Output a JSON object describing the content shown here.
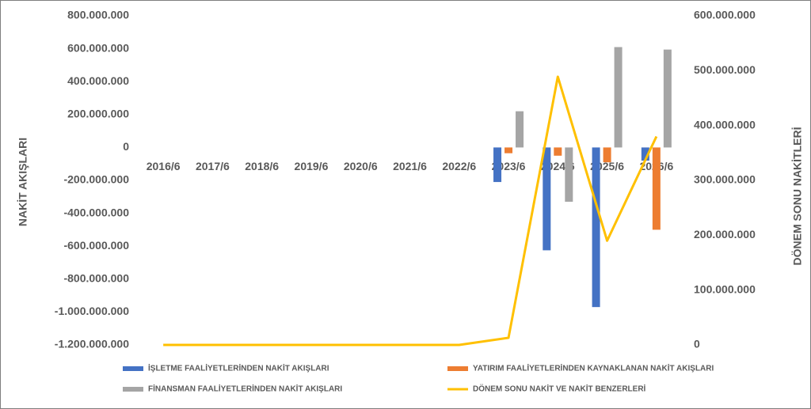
{
  "chart_data": {
    "type": "bar",
    "categories": [
      "2016/6",
      "2017/6",
      "2018/6",
      "2019/6",
      "2020/6",
      "2021/6",
      "2022/6",
      "2023/6",
      "2024/6",
      "2025/6",
      "2026/6"
    ],
    "ylabel": "NAKİT AKIŞLARI",
    "y2label": "DÖNEM SONU NAKİTLERİ",
    "ylim": [
      -1200000000,
      800000000
    ],
    "yticks": [
      {
        "value": -1200000000,
        "label": "-1.200.000.000"
      },
      {
        "value": -1000000000,
        "label": "-1.000.000.000"
      },
      {
        "value": -800000000,
        "label": "-800.000.000"
      },
      {
        "value": -600000000,
        "label": "-600.000.000"
      },
      {
        "value": -400000000,
        "label": "-400.000.000"
      },
      {
        "value": -200000000,
        "label": "-200.000.000"
      },
      0,
      {
        "value": 200000000,
        "label": "200.000.000"
      },
      {
        "value": 400000000,
        "label": "400.000.000"
      },
      {
        "value": 600000000,
        "label": "600.000.000"
      },
      {
        "value": 800000000,
        "label": "800.000.000"
      }
    ],
    "y2lim": [
      0,
      600000000
    ],
    "y2ticks": [
      0,
      {
        "value": 100000000,
        "label": "100.000.000"
      },
      {
        "value": 200000000,
        "label": "200.000.000"
      },
      {
        "value": 300000000,
        "label": "300.000.000"
      },
      {
        "value": 400000000,
        "label": "400.000.000"
      },
      {
        "value": 500000000,
        "label": "500.000.000"
      },
      {
        "value": 600000000,
        "label": "600.000.000"
      }
    ],
    "series": [
      {
        "name": "İŞLETME FAALİYETLERİNDEN NAKİT AKIŞLARI",
        "type": "bar",
        "color": "#4472c4",
        "values": [
          0,
          0,
          0,
          0,
          0,
          0,
          0,
          -210000000,
          -625000000,
          -970000000,
          -80000000
        ]
      },
      {
        "name": "YATIRIM FAALİYETLERİNDEN KAYNAKLANAN NAKİT AKIŞLARI",
        "type": "bar",
        "color": "#ed7d31",
        "values": [
          0,
          0,
          0,
          0,
          0,
          0,
          0,
          -35000000,
          -50000000,
          -90000000,
          -500000000
        ]
      },
      {
        "name": "FİNANSMAN FAALİYETLERİNDEN NAKİT AKIŞLARI",
        "type": "bar",
        "color": "#a5a5a5",
        "values": [
          0,
          0,
          0,
          0,
          0,
          0,
          0,
          220000000,
          -330000000,
          610000000,
          595000000
        ]
      },
      {
        "name": "DÖNEM SONU NAKİT VE NAKİT BENZERLERİ",
        "type": "line",
        "axis": "y2",
        "color": "#ffc000",
        "values": [
          0,
          0,
          0,
          0,
          0,
          0,
          0,
          13000000,
          489000000,
          190000000,
          380000000
        ]
      }
    ]
  }
}
